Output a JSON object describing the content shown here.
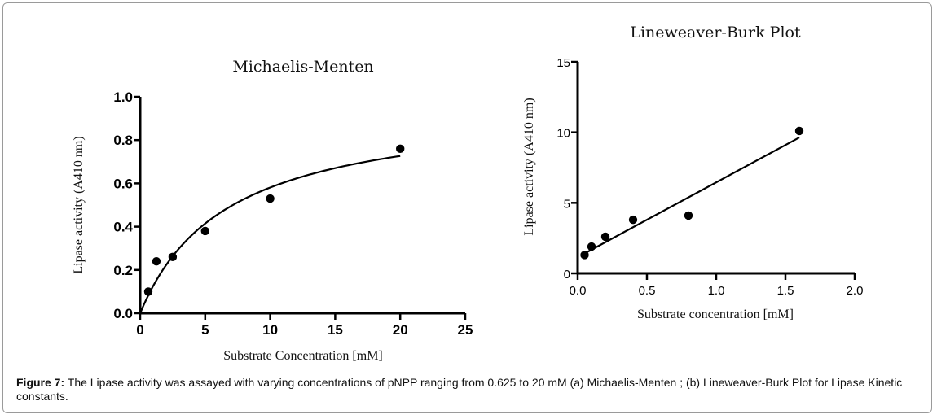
{
  "chart_data": [
    {
      "type": "scatter",
      "title": "Michaelis-Menten",
      "xlabel": "Substrate Concentration [mM]",
      "ylabel": "Lipase activity (A410 nm)",
      "xlim": [
        0,
        25
      ],
      "ylim": [
        0,
        1.0
      ],
      "x_ticks": [
        "0",
        "5",
        "10",
        "15",
        "20",
        "25"
      ],
      "y_ticks": [
        "0.0",
        "0.2",
        "0.4",
        "0.6",
        "0.8",
        "1.0"
      ],
      "grid": false,
      "points": [
        {
          "x": 0.625,
          "y": 0.1
        },
        {
          "x": 1.25,
          "y": 0.24
        },
        {
          "x": 2.5,
          "y": 0.26
        },
        {
          "x": 5,
          "y": 0.38
        },
        {
          "x": 10,
          "y": 0.53
        },
        {
          "x": 20,
          "y": 0.76
        }
      ],
      "fit": {
        "model": "michaelis-menten",
        "vmax": 0.97,
        "km": 6.7,
        "x_range": [
          0,
          20
        ]
      }
    },
    {
      "type": "scatter",
      "title": "Lineweaver-Burk Plot",
      "xlabel": "Substrate concentration [mM]",
      "ylabel": "Lipase activity (A410 nm)",
      "xlim": [
        0,
        2.0
      ],
      "ylim": [
        0,
        15
      ],
      "x_ticks": [
        "0.0",
        "0.5",
        "1.0",
        "1.5",
        "2.0"
      ],
      "y_ticks": [
        "0",
        "5",
        "10",
        "15"
      ],
      "grid": false,
      "points": [
        {
          "x": 0.05,
          "y": 1.3
        },
        {
          "x": 0.1,
          "y": 1.9
        },
        {
          "x": 0.2,
          "y": 2.6
        },
        {
          "x": 0.4,
          "y": 3.8
        },
        {
          "x": 0.8,
          "y": 4.1
        },
        {
          "x": 1.6,
          "y": 10.1
        }
      ],
      "fit": {
        "model": "linear",
        "slope": 5.3,
        "intercept": 1.15,
        "x_range": [
          0.05,
          1.6
        ]
      }
    }
  ],
  "caption": {
    "label": "Figure 7:",
    "text": " The Lipase activity was assayed with varying concentrations of pNPP ranging from 0.625 to 20 mM (a) Michaelis-Menten ; (b) Lineweaver-Burk Plot for Lipase Kinetic constants."
  }
}
